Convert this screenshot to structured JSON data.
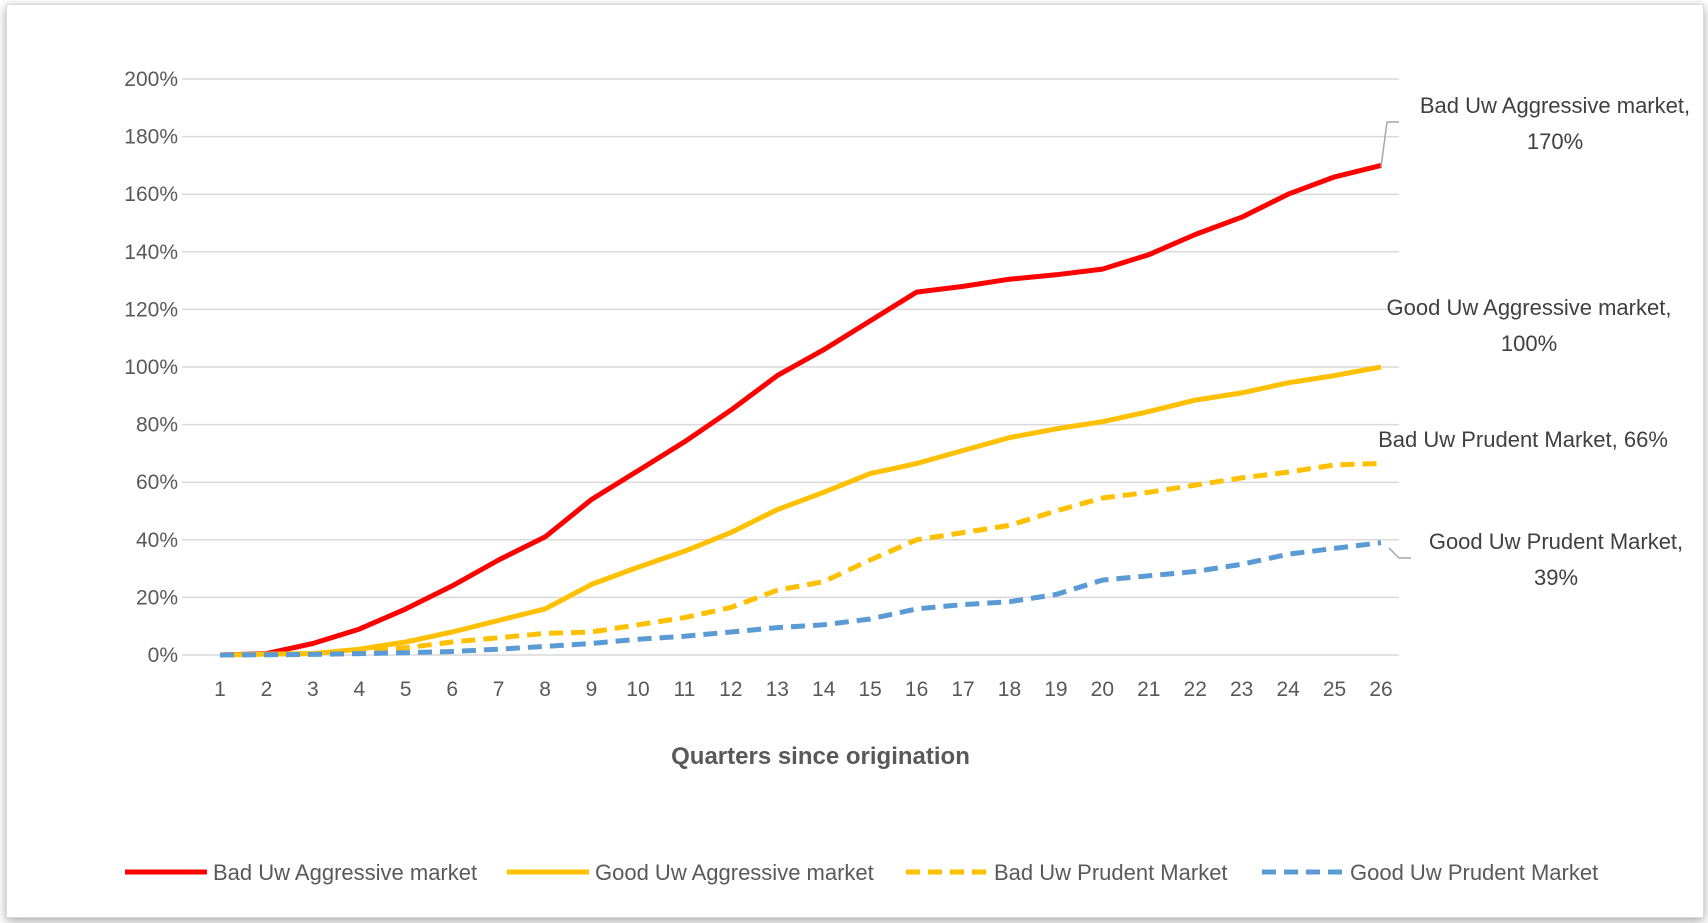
{
  "chart_data": {
    "type": "line",
    "title": "",
    "xlabel": "Quarters since origination",
    "ylabel": "",
    "ylim": [
      0,
      2.0
    ],
    "y_ticks": [
      "0%",
      "20%",
      "40%",
      "60%",
      "80%",
      "100%",
      "120%",
      "140%",
      "160%",
      "180%",
      "200%"
    ],
    "x": [
      1,
      2,
      3,
      4,
      5,
      6,
      7,
      8,
      9,
      10,
      11,
      12,
      13,
      14,
      15,
      16,
      17,
      18,
      19,
      20,
      21,
      22,
      23,
      24,
      25,
      26
    ],
    "grid": "horizontal",
    "legend_position": "bottom",
    "series": [
      {
        "name": "Bad Uw Aggressive market",
        "color": "#ff0000",
        "style": "solid",
        "values": [
          0,
          0.005,
          0.04,
          0.09,
          0.16,
          0.24,
          0.33,
          0.41,
          0.54,
          0.64,
          0.74,
          0.85,
          0.97,
          1.06,
          1.16,
          1.26,
          1.28,
          1.305,
          1.32,
          1.34,
          1.39,
          1.46,
          1.52,
          1.6,
          1.66,
          1.7
        ],
        "end_label": [
          "Bad Uw Aggressive market,",
          "170%"
        ]
      },
      {
        "name": "Good Uw Aggressive market",
        "color": "#ffc000",
        "style": "solid",
        "values": [
          0,
          0.003,
          0.005,
          0.02,
          0.045,
          0.08,
          0.12,
          0.16,
          0.245,
          0.305,
          0.36,
          0.425,
          0.505,
          0.565,
          0.63,
          0.665,
          0.71,
          0.755,
          0.785,
          0.81,
          0.845,
          0.885,
          0.91,
          0.945,
          0.97,
          1.0
        ],
        "end_label": [
          "Good Uw Aggressive market,",
          "100%"
        ]
      },
      {
        "name": "Bad Uw Prudent Market",
        "color": "#ffc000",
        "style": "dashed",
        "values": [
          0,
          0.002,
          0.005,
          0.015,
          0.025,
          0.045,
          0.06,
          0.075,
          0.08,
          0.105,
          0.13,
          0.165,
          0.225,
          0.255,
          0.33,
          0.4,
          0.425,
          0.45,
          0.5,
          0.545,
          0.565,
          0.59,
          0.615,
          0.635,
          0.66,
          0.665
        ],
        "end_label": [
          "Bad Uw Prudent Market, 66%"
        ]
      },
      {
        "name": "Good Uw Prudent Market",
        "color": "#5b9bd5",
        "style": "dashed",
        "values": [
          0,
          0.001,
          0.002,
          0.005,
          0.008,
          0.012,
          0.02,
          0.03,
          0.04,
          0.055,
          0.065,
          0.08,
          0.095,
          0.105,
          0.125,
          0.16,
          0.175,
          0.185,
          0.21,
          0.26,
          0.275,
          0.29,
          0.315,
          0.35,
          0.37,
          0.39
        ],
        "end_label": [
          "Good Uw Prudent Market,",
          "39%"
        ]
      }
    ]
  }
}
